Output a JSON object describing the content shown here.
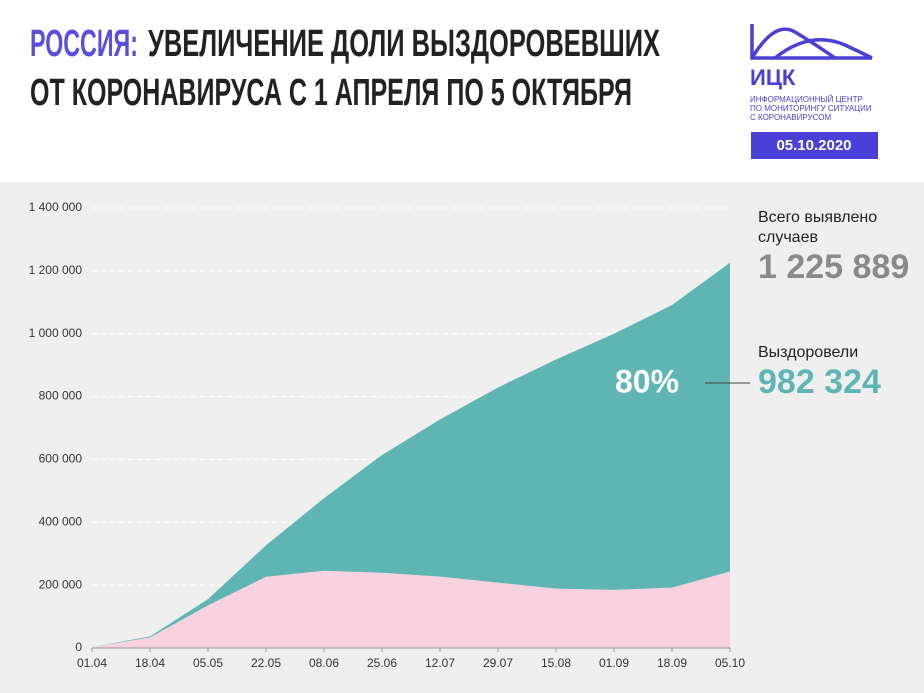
{
  "header": {
    "title_accent": "РОССИЯ:",
    "title_line1": "УВЕЛИЧЕНИЕ ДОЛИ ВЫЗДОРОВЕВШИХ",
    "title_line2": "ОТ КОРОНАВИРУСА С 1 АПРЕЛЯ ПО 5 ОКТЯБРЯ",
    "logo": "ИЦК",
    "logo_lines": [
      "ИНФОРМАЦИОННЫЙ ЦЕНТР",
      "ПО МОНИТОРИНГУ СИТУАЦИИ",
      "С КОРОНАВИРУСОМ"
    ],
    "date": "05.10.2020"
  },
  "chart_data": {
    "type": "stacked_area",
    "categories": [
      "01.04",
      "18.04",
      "05.05",
      "22.05",
      "08.06",
      "25.06",
      "12.07",
      "29.07",
      "15.08",
      "01.09",
      "18.09",
      "05.10"
    ],
    "series": [
      {
        "color": "#f8d3df",
        "values": [
          2587,
          33736,
          135505,
          226623,
          245970,
          239437,
          227162,
          207990,
          188884,
          185048,
          192186,
          243565
        ]
      },
      {
        "color": "#5fb4b4",
        "values": [
          190,
          3057,
          19865,
          99825,
          230688,
          374557,
          500000,
          621000,
          729000,
          815000,
          899000,
          982324
        ]
      }
    ],
    "ylim": [
      0,
      1400000
    ],
    "yticks": [
      0,
      {
        "value": 200000,
        "label": "200 000"
      },
      {
        "value": 400000,
        "label": "400 000"
      },
      {
        "value": 600000,
        "label": "600 000"
      },
      {
        "value": 800000,
        "label": "800 000"
      },
      {
        "value": 1000000,
        "label": "1 000 000"
      },
      {
        "value": 1200000,
        "label": "1 200 000"
      },
      {
        "value": 1400000,
        "label": "1 400 000"
      }
    ],
    "grid": true,
    "annotations": {
      "total_label_1": "Всего выявлено",
      "total_label_2": "случаев",
      "total_value": "1 225 889",
      "recovered_label": "Выздоровели",
      "recovered_value": "982 324",
      "share": "80%"
    }
  }
}
